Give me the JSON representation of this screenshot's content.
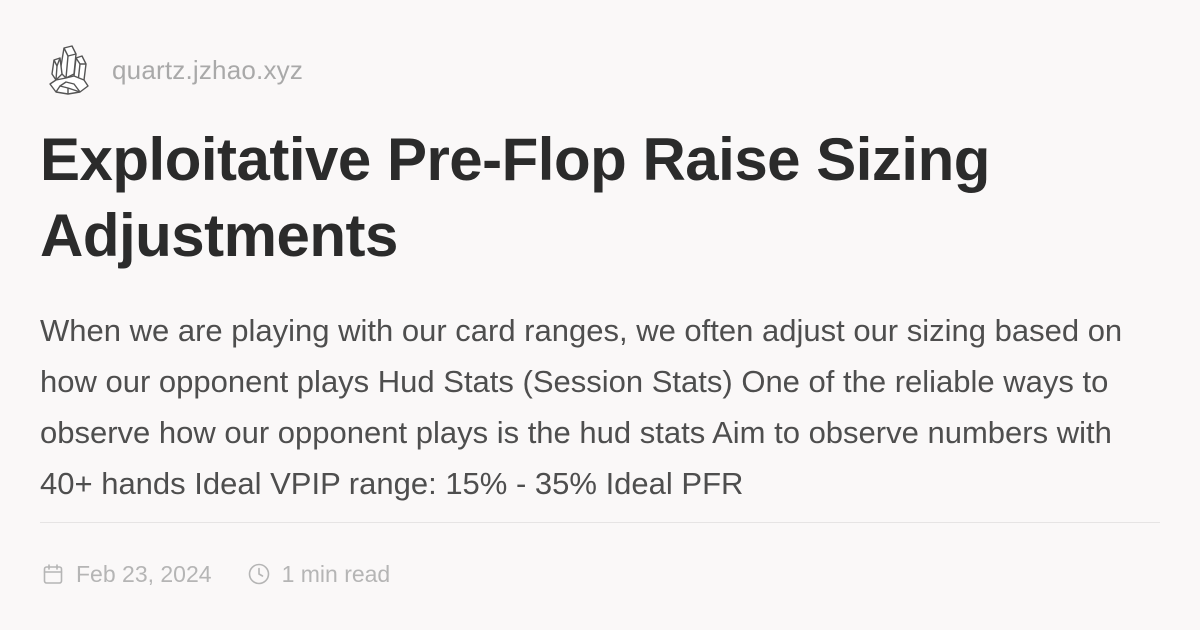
{
  "site": {
    "logo_icon": "quartz-crystal-icon",
    "name": "quartz.jzhao.xyz"
  },
  "article": {
    "title": "Exploitative Pre-Flop Raise Sizing Adjustments",
    "excerpt": "When we are playing with our card ranges, we often adjust our sizing based on how our opponent plays Hud Stats (Session Stats) One of the reliable ways to observe how our opponent plays is the hud stats Aim to observe numbers with 40+ hands Ideal VPIP range: 15% - 35% Ideal PFR"
  },
  "meta": {
    "date_icon": "calendar-icon",
    "date": "Feb 23, 2024",
    "read_time_icon": "clock-icon",
    "read_time": "1 min read"
  },
  "colors": {
    "background": "#faf8f8",
    "title": "#2b2b2b",
    "body_text": "#4e4e4e",
    "muted": "#b5b5b5"
  }
}
